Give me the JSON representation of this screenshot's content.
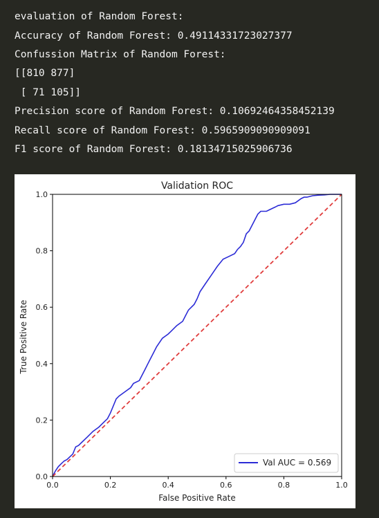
{
  "output_lines": [
    "evaluation of Random Forest:",
    "Accuracy of Random Forest: 0.49114331723027377",
    "Confussion Matrix of Random Forest:",
    "[[810 877]",
    " [ 71 105]]",
    "Precision score of Random Forest: 0.10692464358452139",
    "Recall score of Random Forest: 0.5965909090909091",
    "F1 score of Random Forest: 0.18134715025906736"
  ],
  "colors": {
    "background": "#272822",
    "text": "#f2f2f2",
    "roc_line": "#2b2bd6",
    "diagonal": "#e03c3c"
  },
  "chart_data": {
    "type": "line",
    "title": "Validation ROC",
    "xlabel": "False Positive Rate",
    "ylabel": "True Positive Rate",
    "xlim": [
      0.0,
      1.0
    ],
    "ylim": [
      0.0,
      1.0
    ],
    "xticks": [
      "0.0",
      "0.2",
      "0.4",
      "0.6",
      "0.8",
      "1.0"
    ],
    "yticks": [
      "0.0",
      "0.2",
      "0.4",
      "0.6",
      "0.8",
      "1.0"
    ],
    "grid": false,
    "legend": {
      "placement": "lower-right"
    },
    "series": [
      {
        "name": "Val AUC = 0.569",
        "style": "solid",
        "x": [
          0.0,
          0.01,
          0.02,
          0.03,
          0.04,
          0.05,
          0.06,
          0.07,
          0.08,
          0.09,
          0.1,
          0.12,
          0.14,
          0.16,
          0.18,
          0.19,
          0.2,
          0.22,
          0.23,
          0.25,
          0.27,
          0.28,
          0.3,
          0.31,
          0.32,
          0.33,
          0.34,
          0.35,
          0.36,
          0.38,
          0.4,
          0.41,
          0.43,
          0.45,
          0.46,
          0.47,
          0.49,
          0.5,
          0.51,
          0.53,
          0.55,
          0.57,
          0.59,
          0.61,
          0.63,
          0.64,
          0.65,
          0.66,
          0.67,
          0.68,
          0.69,
          0.7,
          0.71,
          0.72,
          0.73,
          0.74,
          0.75,
          0.76,
          0.77,
          0.78,
          0.8,
          0.82,
          0.84,
          0.86,
          0.87,
          0.88,
          0.9,
          0.92,
          0.94,
          0.96,
          0.98,
          1.0
        ],
        "y": [
          0.0,
          0.02,
          0.035,
          0.045,
          0.055,
          0.06,
          0.07,
          0.08,
          0.105,
          0.11,
          0.12,
          0.14,
          0.16,
          0.175,
          0.195,
          0.205,
          0.225,
          0.275,
          0.285,
          0.3,
          0.315,
          0.33,
          0.34,
          0.36,
          0.38,
          0.4,
          0.42,
          0.44,
          0.46,
          0.49,
          0.505,
          0.515,
          0.535,
          0.55,
          0.57,
          0.59,
          0.61,
          0.63,
          0.655,
          0.685,
          0.715,
          0.745,
          0.77,
          0.78,
          0.79,
          0.805,
          0.815,
          0.83,
          0.86,
          0.87,
          0.89,
          0.91,
          0.93,
          0.94,
          0.94,
          0.94,
          0.945,
          0.95,
          0.955,
          0.96,
          0.965,
          0.965,
          0.97,
          0.985,
          0.99,
          0.99,
          0.995,
          0.997,
          0.998,
          1.0,
          1.0,
          1.0
        ]
      },
      {
        "name": "",
        "style": "dashed",
        "x": [
          0.0,
          1.0
        ],
        "y": [
          0.0,
          1.0
        ]
      }
    ]
  }
}
